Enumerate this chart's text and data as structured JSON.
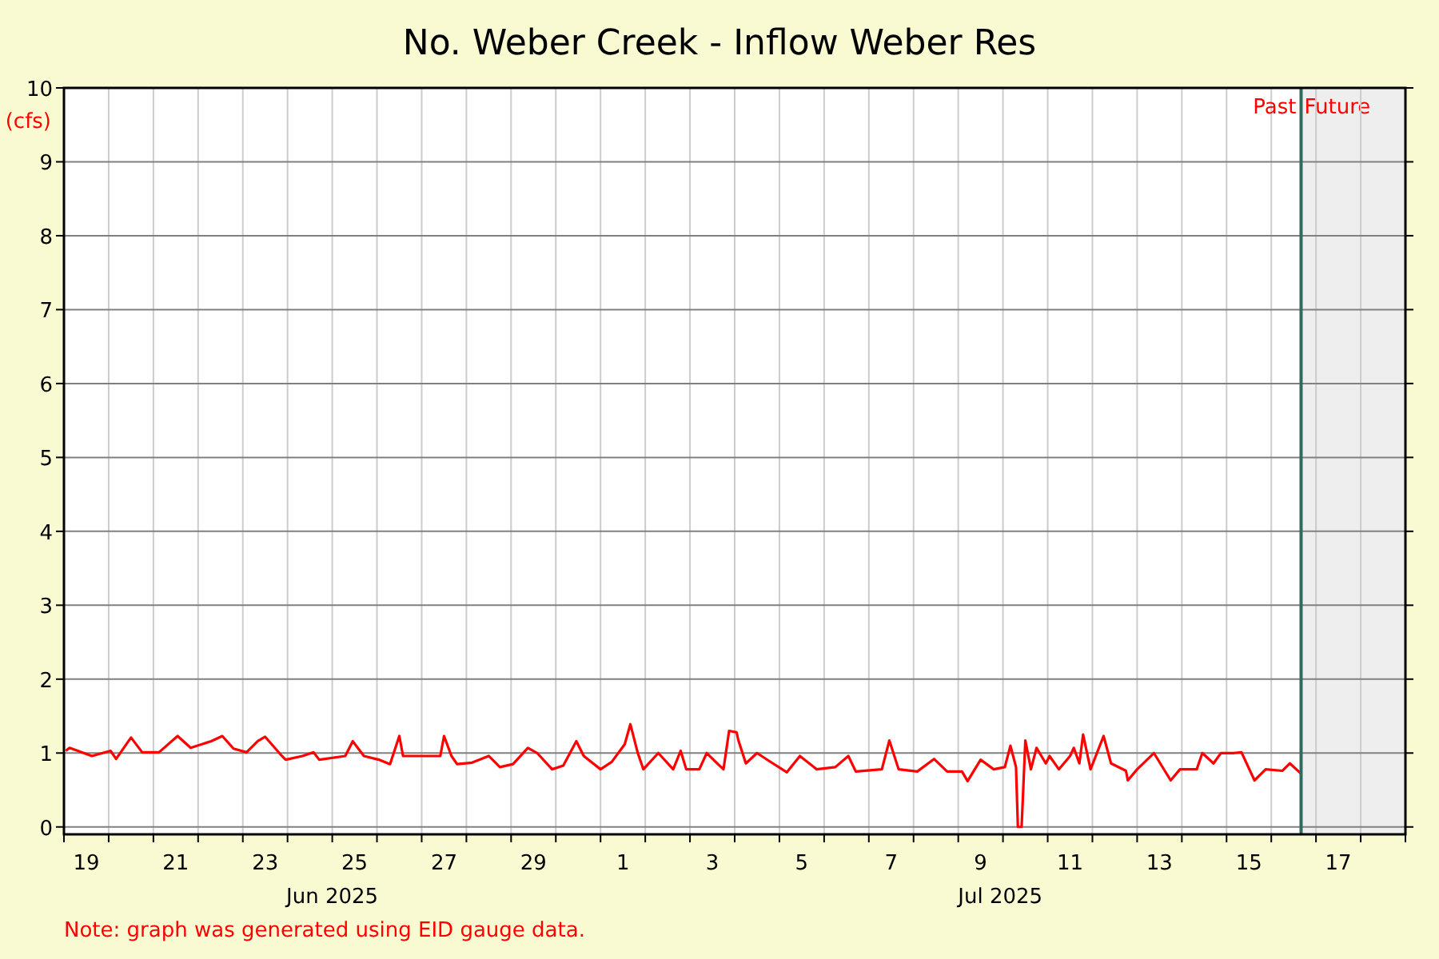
{
  "chart_data": {
    "type": "line",
    "title": "No. Weber Creek - Inflow Weber Res",
    "ylabel": "(cfs)",
    "xlim": [
      "2025-06-19",
      "2025-07-19"
    ],
    "ylim": [
      -0.1,
      10
    ],
    "yticks": [
      0,
      1,
      2,
      3,
      4,
      5,
      6,
      7,
      8,
      9,
      10
    ],
    "grid": true,
    "xticks": [
      {
        "value": "2025-06-19",
        "label": null
      },
      {
        "value": "2025-06-20",
        "label": null
      },
      {
        "value": "2025-06-21",
        "label": null
      },
      {
        "value": "2025-06-22",
        "label": null
      },
      {
        "value": "2025-06-23",
        "label": null
      },
      {
        "value": "2025-06-24",
        "label": null
      },
      {
        "value": "2025-06-25",
        "label": null
      },
      {
        "value": "2025-06-26",
        "label": null
      },
      {
        "value": "2025-06-27",
        "label": null
      },
      {
        "value": "2025-06-28",
        "label": null
      },
      {
        "value": "2025-06-29",
        "label": null
      },
      {
        "value": "2025-06-30",
        "label": null
      },
      {
        "value": "2025-07-01",
        "label": null
      },
      {
        "value": "2025-07-02",
        "label": null
      },
      {
        "value": "2025-07-03",
        "label": null
      },
      {
        "value": "2025-07-04",
        "label": null
      },
      {
        "value": "2025-07-05",
        "label": null
      },
      {
        "value": "2025-07-06",
        "label": null
      },
      {
        "value": "2025-07-07",
        "label": null
      },
      {
        "value": "2025-07-08",
        "label": null
      },
      {
        "value": "2025-07-09",
        "label": null
      },
      {
        "value": "2025-07-10",
        "label": null
      },
      {
        "value": "2025-07-11",
        "label": null
      },
      {
        "value": "2025-07-12",
        "label": null
      },
      {
        "value": "2025-07-13",
        "label": null
      },
      {
        "value": "2025-07-14",
        "label": null
      },
      {
        "value": "2025-07-15",
        "label": null
      },
      {
        "value": "2025-07-16",
        "label": null
      },
      {
        "value": "2025-07-17",
        "label": null
      },
      {
        "value": "2025-07-18",
        "label": null
      },
      {
        "value": "2025-07-19",
        "label": null
      },
      {
        "value": "2025-06-19T12:00",
        "label": "19"
      },
      {
        "value": "2025-06-21T12:00",
        "label": "21"
      },
      {
        "value": "2025-06-23T12:00",
        "label": "23"
      },
      {
        "value": "2025-06-25T12:00",
        "label": "25"
      },
      {
        "value": "2025-06-27T12:00",
        "label": "27"
      },
      {
        "value": "2025-06-29T12:00",
        "label": "29"
      },
      {
        "value": "2025-07-01T12:00",
        "label": "1"
      },
      {
        "value": "2025-07-03T12:00",
        "label": "3"
      },
      {
        "value": "2025-07-05T12:00",
        "label": "5"
      },
      {
        "value": "2025-07-07T12:00",
        "label": "7"
      },
      {
        "value": "2025-07-09T12:00",
        "label": "9"
      },
      {
        "value": "2025-07-11T12:00",
        "label": "11"
      },
      {
        "value": "2025-07-13T12:00",
        "label": "13"
      },
      {
        "value": "2025-07-15T12:00",
        "label": "15"
      },
      {
        "value": "2025-07-17T12:00",
        "label": "17"
      }
    ],
    "ref_lines": [
      {
        "axis": "x",
        "value": "2025-07-16T16:00",
        "label": "Past",
        "color": "#2e6b5e"
      }
    ],
    "bands": [
      {
        "axis": "x",
        "from": "2025-07-16T16:00",
        "to": "2025-07-19",
        "label": "Future",
        "color": "#eeeeee"
      }
    ],
    "annotations": [
      "Jun 2025",
      "Jul 2025",
      "Note: graph was generated using EID gauge data."
    ],
    "series": [
      {
        "color": "#ff0000",
        "x": [
          "2025-06-19T01:00",
          "2025-06-19T03:00",
          "2025-06-19T15:00",
          "2025-06-20T01:00",
          "2025-06-20T04:00",
          "2025-06-20T12:00",
          "2025-06-20T18:00",
          "2025-06-21T03:00",
          "2025-06-21T13:00",
          "2025-06-21T20:00",
          "2025-06-22T07:00",
          "2025-06-22T13:00",
          "2025-06-22T19:00",
          "2025-06-23T02:00",
          "2025-06-23T08:00",
          "2025-06-23T12:00",
          "2025-06-23T21:00",
          "2025-06-23T23:00",
          "2025-06-24T08:00",
          "2025-06-24T14:00",
          "2025-06-24T17:00",
          "2025-06-25T07:00",
          "2025-06-25T11:00",
          "2025-06-25T17:00",
          "2025-06-26T01:00",
          "2025-06-26T07:00",
          "2025-06-26T12:00",
          "2025-06-26T14:00",
          "2025-06-26T23:00",
          "2025-06-27T10:00",
          "2025-06-27T12:00",
          "2025-06-27T16:00",
          "2025-06-27T19:00",
          "2025-06-28T03:00",
          "2025-06-28T12:00",
          "2025-06-28T18:00",
          "2025-06-29T01:00",
          "2025-06-29T09:00",
          "2025-06-29T14:00",
          "2025-06-29T22:00",
          "2025-06-30T04:00",
          "2025-06-30T11:00",
          "2025-06-30T15:00",
          "2025-07-01T00:00",
          "2025-07-01T06:00",
          "2025-07-01T13:00",
          "2025-07-01T16:00",
          "2025-07-01T20:00",
          "2025-07-01T23:00",
          "2025-07-02T07:00",
          "2025-07-02T15:00",
          "2025-07-02T19:00",
          "2025-07-02T22:00",
          "2025-07-03T05:00",
          "2025-07-03T09:00",
          "2025-07-03T15:00",
          "2025-07-03T18:00",
          "2025-07-03T21:00",
          "2025-07-04T01:00",
          "2025-07-04T02:00",
          "2025-07-04T06:00",
          "2025-07-04T12:00",
          "2025-07-04T18:00",
          "2025-07-05T04:00",
          "2025-07-05T11:00",
          "2025-07-05T20:00",
          "2025-07-06T06:00",
          "2025-07-06T13:00",
          "2025-07-06T17:00",
          "2025-07-07T07:00",
          "2025-07-07T11:00",
          "2025-07-07T16:00",
          "2025-07-08T02:00",
          "2025-07-08T11:00",
          "2025-07-08T18:00",
          "2025-07-09T02:00",
          "2025-07-09T05:00",
          "2025-07-09T12:00",
          "2025-07-09T19:00",
          "2025-07-10T01:00",
          "2025-07-10T04:00",
          "2025-07-10T07:00",
          "2025-07-10T08:00",
          "2025-07-10T10:00",
          "2025-07-10T12:00",
          "2025-07-10T15:00",
          "2025-07-10T18:00",
          "2025-07-10T23:00",
          "2025-07-11T01:00",
          "2025-07-11T06:00",
          "2025-07-11T12:00",
          "2025-07-11T14:00",
          "2025-07-11T17:00",
          "2025-07-11T19:00",
          "2025-07-11T23:00",
          "2025-07-12T06:00",
          "2025-07-12T10:00",
          "2025-07-12T18:00",
          "2025-07-12T19:00",
          "2025-07-13T00:00",
          "2025-07-13T09:00",
          "2025-07-13T18:00",
          "2025-07-13T23:00",
          "2025-07-14T08:00",
          "2025-07-14T11:00",
          "2025-07-14T17:00",
          "2025-07-14T21:00",
          "2025-07-15T04:00",
          "2025-07-15T08:00",
          "2025-07-15T15:00",
          "2025-07-15T21:00",
          "2025-07-16T06:00",
          "2025-07-16T10:00",
          "2025-07-16T16:00"
        ],
        "values": [
          1.03,
          1.07,
          0.96,
          1.03,
          0.92,
          1.21,
          1.01,
          1.01,
          1.23,
          1.07,
          1.16,
          1.23,
          1.06,
          1.01,
          1.16,
          1.22,
          0.96,
          0.91,
          0.96,
          1.01,
          0.91,
          0.96,
          1.16,
          0.96,
          0.91,
          0.85,
          1.23,
          0.96,
          0.96,
          0.96,
          1.23,
          0.96,
          0.85,
          0.87,
          0.96,
          0.81,
          0.85,
          1.07,
          1.0,
          0.78,
          0.83,
          1.16,
          0.96,
          0.78,
          0.88,
          1.12,
          1.39,
          1.0,
          0.78,
          1.0,
          0.78,
          1.03,
          0.78,
          0.78,
          1.0,
          0.85,
          0.78,
          1.3,
          1.28,
          1.17,
          0.86,
          1.0,
          0.9,
          0.74,
          0.96,
          0.78,
          0.81,
          0.96,
          0.75,
          0.78,
          1.17,
          0.78,
          0.75,
          0.92,
          0.75,
          0.75,
          0.62,
          0.91,
          0.78,
          0.81,
          1.1,
          0.81,
          0.0,
          0.0,
          1.17,
          0.78,
          1.07,
          0.86,
          0.96,
          0.78,
          0.96,
          1.07,
          0.86,
          1.25,
          0.78,
          1.23,
          0.86,
          0.76,
          0.63,
          0.78,
          1.0,
          0.63,
          0.78,
          0.78,
          1.0,
          0.86,
          1.0,
          1.0,
          1.01,
          0.63,
          0.78,
          0.76,
          0.86,
          0.72
        ]
      }
    ]
  }
}
